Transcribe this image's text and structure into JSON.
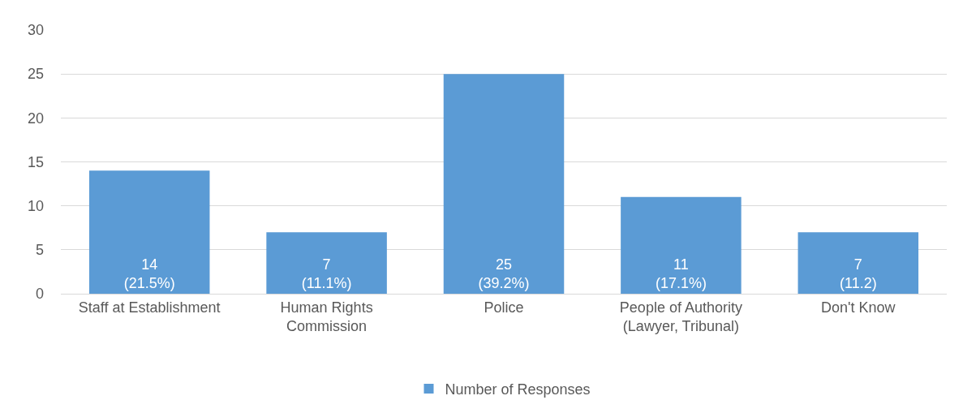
{
  "chart_data": {
    "type": "bar",
    "categories": [
      "Staff at Establishment",
      "Human Rights Commission",
      "Police",
      "People of Authority (Lawyer, Tribunal)",
      "Don't Know"
    ],
    "series": [
      {
        "name": "Number of Responses",
        "color": "#5b9bd5",
        "values": [
          14,
          7,
          25,
          11,
          7
        ],
        "value_labels": [
          "14\n(21.5%)",
          "7\n(11.1%)",
          "25\n(39.2%)",
          "11\n(17.1%)",
          "7\n(11.2)"
        ]
      }
    ],
    "ylim": [
      0,
      30
    ],
    "yticks": [
      0,
      5,
      10,
      15,
      20,
      25,
      30
    ],
    "grid": "y",
    "legend": "bottom"
  }
}
